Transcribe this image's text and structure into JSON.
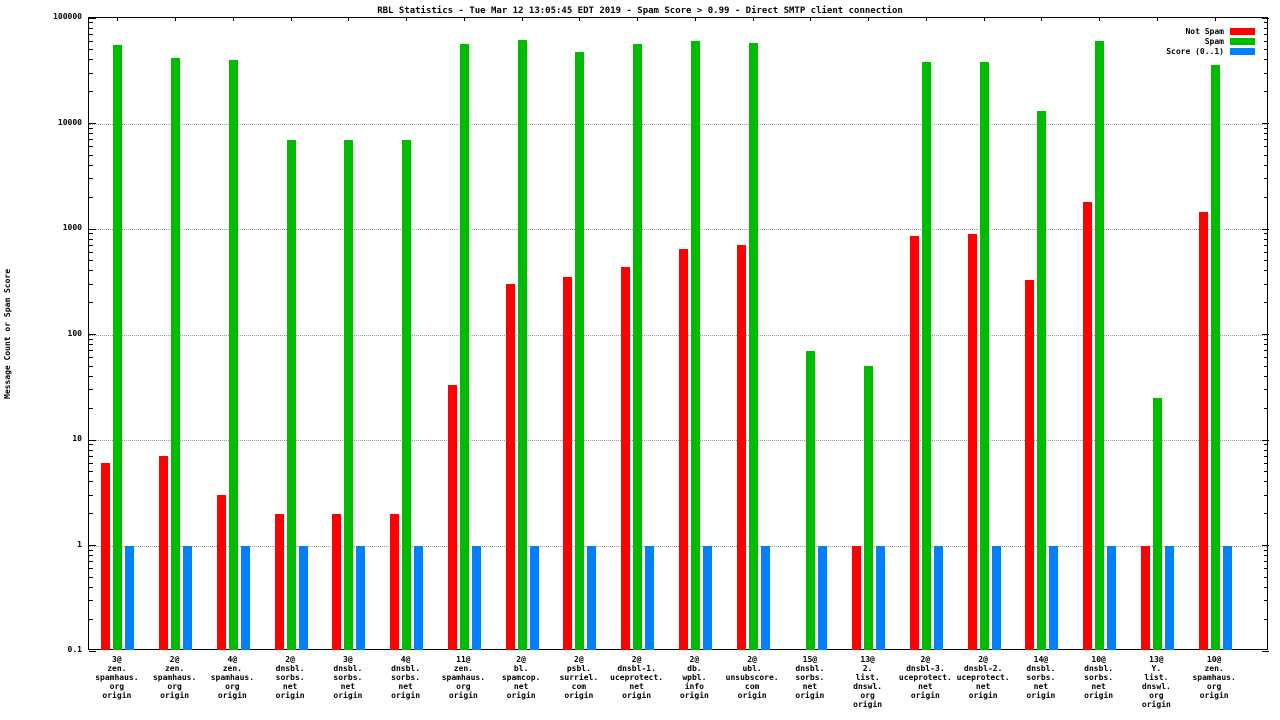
{
  "chart_data": {
    "type": "bar",
    "title": "RBL Statistics - Tue Mar 12 13:05:45 EDT 2019 - Spam Score > 0.99 - Direct SMTP client connection",
    "ylabel": "Message Count or Spam Score",
    "yscale": "log",
    "ylim": [
      0.1,
      100000
    ],
    "yticks": [
      "0.1",
      "1",
      "10",
      "100",
      "1000",
      "10000",
      "100000"
    ],
    "grid": true,
    "legend_position": "top-right-inside",
    "categories": [
      [
        "3@",
        "zen.",
        "spamhaus.",
        "org",
        "origin"
      ],
      [
        "2@",
        "zen.",
        "spamhaus.",
        "org",
        "origin"
      ],
      [
        "4@",
        "zen.",
        "spamhaus.",
        "org",
        "origin"
      ],
      [
        "2@",
        "dnsbl.",
        "sorbs.",
        "net",
        "origin"
      ],
      [
        "3@",
        "dnsbl.",
        "sorbs.",
        "net",
        "origin"
      ],
      [
        "4@",
        "dnsbl.",
        "sorbs.",
        "net",
        "origin"
      ],
      [
        "11@",
        "zen.",
        "spamhaus.",
        "org",
        "origin"
      ],
      [
        "2@",
        "bl.",
        "spamcop.",
        "net",
        "origin"
      ],
      [
        "2@",
        "psbl.",
        "surriel.",
        "com",
        "origin"
      ],
      [
        "2@",
        "dnsbl-1.",
        "uceprotect.",
        "net",
        "origin"
      ],
      [
        "2@",
        "db.",
        "wpbl.",
        "info",
        "origin"
      ],
      [
        "2@",
        "ubl.",
        "unsubscore.",
        "com",
        "origin"
      ],
      [
        "15@",
        "dnsbl.",
        "sorbs.",
        "net",
        "origin"
      ],
      [
        "13@",
        "2.",
        "list.",
        "dnswl.",
        "org",
        "origin"
      ],
      [
        "2@",
        "dnsbl-3.",
        "uceprotect.",
        "net",
        "origin"
      ],
      [
        "2@",
        "dnsbl-2.",
        "uceprotect.",
        "net",
        "origin"
      ],
      [
        "14@",
        "dnsbl.",
        "sorbs.",
        "net",
        "origin"
      ],
      [
        "10@",
        "dnsbl.",
        "sorbs.",
        "net",
        "origin"
      ],
      [
        "13@",
        "Y.",
        "list.",
        "dnswl.",
        "org",
        "origin"
      ],
      [
        "10@",
        "zen.",
        "spamhaus.",
        "org",
        "origin"
      ]
    ],
    "series": [
      {
        "name": "Not Spam",
        "color": "#ff0000",
        "values": [
          6,
          7,
          3,
          2,
          2,
          2,
          33,
          300,
          350,
          440,
          650,
          700,
          null,
          1,
          850,
          900,
          330,
          1800,
          1,
          1450
        ]
      },
      {
        "name": "Spam",
        "color": "#00bb00",
        "values": [
          55000,
          42000,
          40000,
          7000,
          7000,
          7000,
          57000,
          62000,
          48000,
          57000,
          60000,
          58000,
          70,
          50,
          38000,
          38000,
          13000,
          60000,
          25,
          36000
        ]
      },
      {
        "name": "Score (0..1)",
        "color": "#0080ff",
        "values": [
          1,
          1,
          1,
          1,
          1,
          1,
          1,
          1,
          1,
          1,
          1,
          1,
          1,
          1,
          1,
          1,
          1,
          1,
          1,
          1
        ]
      }
    ]
  }
}
